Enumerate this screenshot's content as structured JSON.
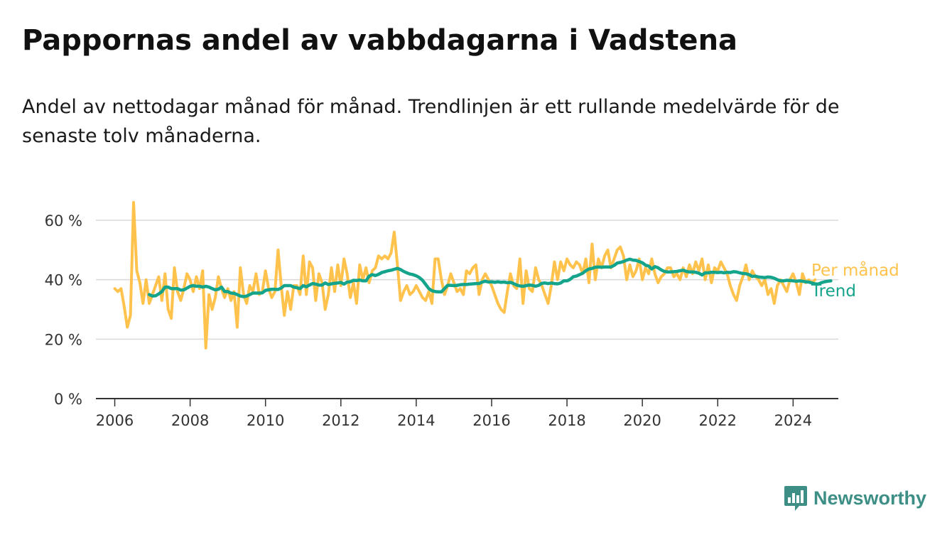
{
  "title": "Pappornas andel av vabbdagarna i Vadstena",
  "subtitle": "Andel av nettodagar månad för månad. Trendlinjen är ett rullande medelvärde för de senaste tolv månaderna.",
  "brand": {
    "name": "Newsworthy",
    "icon": "chart-bubble-icon",
    "color": "#3d8f86"
  },
  "chart_data": {
    "type": "line",
    "title": "Pappornas andel av vabbdagarna i Vadstena",
    "xlabel": "",
    "ylabel": "",
    "xlim": [
      2005.5,
      2025.2
    ],
    "ylim": [
      0,
      60
    ],
    "x_ticks": [
      2006,
      2008,
      2010,
      2012,
      2014,
      2016,
      2018,
      2020,
      2022,
      2024
    ],
    "x_tick_labels": [
      "2006",
      "2008",
      "2010",
      "2012",
      "2014",
      "2016",
      "2018",
      "2020",
      "2022",
      "2024"
    ],
    "y_ticks": [
      0,
      20,
      40,
      60
    ],
    "y_tick_labels": [
      "0 %",
      "20 %",
      "40 %",
      "60 %"
    ],
    "grid": "horizontal",
    "legend": "right end labels",
    "series": [
      {
        "name": "Per månad",
        "color": "#ffc34d",
        "x_start": 2006.0,
        "x_step": 0.0833333,
        "values": [
          37,
          36,
          37,
          31,
          24,
          28,
          66,
          43,
          39,
          32,
          40,
          32,
          35,
          38,
          41,
          33,
          42,
          30,
          27,
          44,
          36,
          33,
          37,
          42,
          40,
          36,
          41,
          37,
          43,
          17,
          35,
          30,
          34,
          41,
          37,
          34,
          37,
          33,
          36,
          24,
          44,
          35,
          32,
          38,
          36,
          42,
          35,
          36,
          43,
          37,
          34,
          36,
          50,
          38,
          28,
          36,
          30,
          38,
          38,
          35,
          48,
          35,
          46,
          44,
          33,
          42,
          39,
          30,
          35,
          44,
          36,
          45,
          38,
          47,
          42,
          34,
          39,
          32,
          45,
          40,
          44,
          39,
          43,
          44,
          48,
          47,
          48,
          47,
          49,
          56,
          45,
          33,
          36,
          38,
          35,
          36,
          38,
          36,
          34,
          33,
          36,
          32,
          47,
          47,
          40,
          35,
          38,
          42,
          39,
          36,
          37,
          35,
          43,
          42,
          44,
          45,
          35,
          40,
          42,
          40,
          38,
          35,
          32,
          30,
          29,
          36,
          42,
          38,
          37,
          47,
          32,
          43,
          37,
          36,
          44,
          40,
          38,
          35,
          32,
          38,
          46,
          40,
          46,
          43,
          47,
          45,
          44,
          46,
          45,
          42,
          47,
          39,
          52,
          40,
          47,
          44,
          48,
          50,
          44,
          47,
          50,
          51,
          48,
          40,
          45,
          41,
          43,
          47,
          40,
          44,
          42,
          47,
          42,
          39,
          41,
          42,
          44,
          44,
          41,
          42,
          40,
          44,
          41,
          45,
          42,
          46,
          43,
          47,
          40,
          45,
          39,
          44,
          43,
          46,
          44,
          42,
          38,
          35,
          33,
          38,
          41,
          45,
          40,
          43,
          41,
          40,
          38,
          40,
          35,
          37,
          32,
          38,
          40,
          38,
          36,
          40,
          42,
          39,
          35,
          42,
          39,
          40,
          39,
          40
        ]
      },
      {
        "name": "Trend",
        "color": "#14a38b",
        "x_start": 2006.9167,
        "x_step": 0.0833333,
        "values": [
          35,
          34.5,
          34.6,
          35.2,
          36,
          37.5,
          37.5,
          37,
          37,
          37,
          36.5,
          36.6,
          37.2,
          37.8,
          38,
          37.8,
          37.8,
          37.5,
          37.8,
          37.5,
          37,
          36.6,
          36.8,
          37.5,
          36,
          36,
          35.5,
          35.4,
          35,
          34.5,
          34.3,
          34.5,
          35,
          35.5,
          35.5,
          35.5,
          35.6,
          36.4,
          36.6,
          36.8,
          36.8,
          36.7,
          37.2,
          38,
          38,
          38,
          37.5,
          37.3,
          37,
          38,
          37.6,
          38.2,
          38.7,
          38.5,
          38.2,
          38.2,
          38.9,
          38.4,
          38.6,
          38.8,
          38.9,
          39.1,
          38.5,
          39.2,
          39.3,
          39.8,
          39.7,
          39.9,
          39.6,
          39.6,
          41.2,
          41.7,
          41.4,
          41.8,
          42.4,
          42.7,
          43,
          43.2,
          43.5,
          43.8,
          43.4,
          42.8,
          42.3,
          41.9,
          41.7,
          41.3,
          40.7,
          39.8,
          38.4,
          37,
          36.3,
          36,
          35.9,
          35.9,
          37,
          38.1,
          38.1,
          38,
          38.1,
          38.3,
          38.4,
          38.4,
          38.5,
          38.6,
          38.7,
          38.7,
          39.2,
          39.5,
          39.2,
          39.3,
          39.1,
          39.3,
          39.1,
          39.2,
          39,
          39.1,
          38.7,
          38.2,
          37.9,
          37.8,
          38,
          38.2,
          38.1,
          37.8,
          38.1,
          38.8,
          38.9,
          38.7,
          38.9,
          38.7,
          38.6,
          38.9,
          39.6,
          39.6,
          40.1,
          41,
          41.2,
          41.7,
          42.2,
          43,
          43.6,
          43.8,
          44.2,
          44.3,
          44.2,
          44.3,
          44.3,
          44.3,
          44.8,
          45.6,
          45.8,
          46.1,
          46.6,
          46.9,
          46.6,
          46.5,
          46.1,
          45.7,
          44.9,
          44.6,
          43.6,
          44.4,
          44,
          43.3,
          42.8,
          42.6,
          42.6,
          42.7,
          42.8,
          43,
          43.2,
          42.8,
          42.6,
          42.6,
          42.5,
          42.2,
          41.6,
          42.3,
          42.3,
          42.5,
          42.5,
          42.4,
          42.5,
          42.3,
          42.5,
          42.4,
          42.7,
          42.6,
          42.3,
          42.1,
          42,
          41.7,
          41.1,
          41.2,
          40.9,
          40.8,
          40.7,
          40.9,
          40.8,
          40.5,
          40,
          39.6,
          39.6,
          39.8,
          39.7,
          39.6,
          39.5,
          39.6,
          39.5,
          39.3,
          39.2,
          38.9,
          38.6,
          38.5,
          39,
          39.3,
          39.5,
          39.6
        ]
      }
    ]
  }
}
